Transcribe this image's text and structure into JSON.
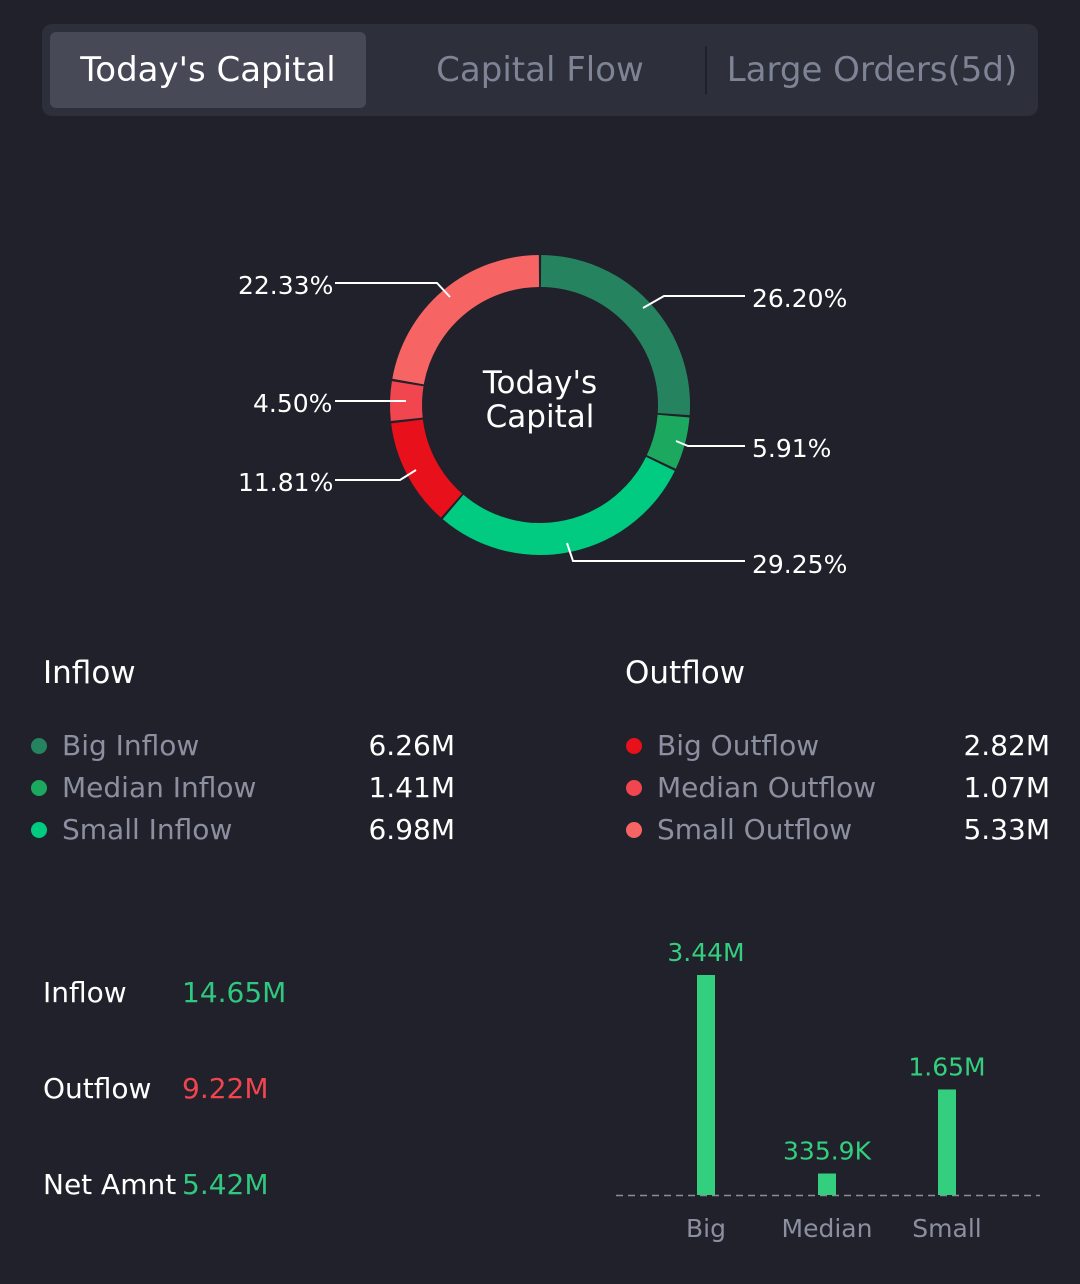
{
  "tabs": [
    {
      "label": "Today's Capital",
      "active": true
    },
    {
      "label": "Capital Flow",
      "active": false
    },
    {
      "label": "Large Orders(5d)",
      "active": false
    }
  ],
  "donut": {
    "center_line1": "Today's",
    "center_line2": "Capital",
    "segments": [
      {
        "name": "Big Inflow",
        "percent": 26.2,
        "label": "26.20%",
        "color": "#26835f"
      },
      {
        "name": "Median Inflow",
        "percent": 5.91,
        "label": "5.91%",
        "color": "#1ca85e"
      },
      {
        "name": "Small Inflow",
        "percent": 29.25,
        "label": "29.25%",
        "color": "#00cb80"
      },
      {
        "name": "Big Outflow",
        "percent": 11.81,
        "label": "11.81%",
        "color": "#e8101a"
      },
      {
        "name": "Median Outflow",
        "percent": 4.5,
        "label": "4.50%",
        "color": "#f14550"
      },
      {
        "name": "Small Outflow",
        "percent": 22.33,
        "label": "22.33%",
        "color": "#f76464"
      }
    ]
  },
  "inflow": {
    "title": "Inflow",
    "items": [
      {
        "label": "Big Inflow",
        "value": "6.26M",
        "color": "#26835f"
      },
      {
        "label": "Median Inflow",
        "value": "1.41M",
        "color": "#1ca85e"
      },
      {
        "label": "Small Inflow",
        "value": "6.98M",
        "color": "#00cb80"
      }
    ]
  },
  "outflow": {
    "title": "Outflow",
    "items": [
      {
        "label": "Big Outflow",
        "value": "2.82M",
        "color": "#e8101a"
      },
      {
        "label": "Median Outflow",
        "value": "1.07M",
        "color": "#f14550"
      },
      {
        "label": "Small Outflow",
        "value": "5.33M",
        "color": "#f76464"
      }
    ]
  },
  "summary": {
    "inflow_label": "Inflow",
    "inflow_value": "14.65M",
    "outflow_label": "Outflow",
    "outflow_value": "9.22M",
    "net_label": "Net Amnt",
    "net_value": "5.42M",
    "positive_color": "#2fc87e",
    "negative_color": "#f0454f"
  },
  "chart_data": {
    "type": "bar",
    "categories": [
      "Big",
      "Median",
      "Small"
    ],
    "values": [
      3440000,
      335900,
      1650000
    ],
    "value_labels": [
      "3.44M",
      "335.9K",
      "1.65M"
    ],
    "bar_color": "#34cf7e"
  }
}
